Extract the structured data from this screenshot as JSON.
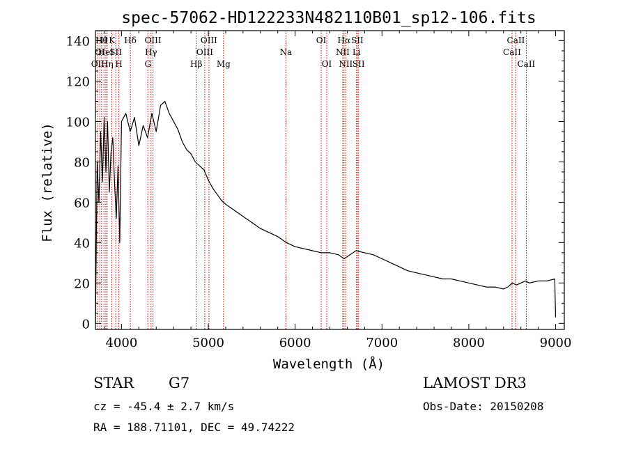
{
  "chart_data": {
    "type": "line",
    "title": "spec-57062-HD122233N482110B01_sp12-106.fits",
    "xlabel": "Wavelength (Å)",
    "ylabel": "Flux (relative)",
    "xlim": [
      3700,
      9100
    ],
    "ylim": [
      -3,
      145
    ],
    "xticks": [
      4000,
      5000,
      6000,
      7000,
      8000,
      9000
    ],
    "xtick_labels": [
      "4000",
      "5000",
      "6000",
      "7000",
      "8000",
      "9000"
    ],
    "yticks": [
      0,
      20,
      40,
      60,
      80,
      100,
      120,
      140
    ],
    "ytick_labels": [
      "0",
      "20",
      "40",
      "60",
      "80",
      "100",
      "120",
      "140"
    ],
    "series": [
      {
        "name": "spectrum",
        "x": [
          3700,
          3720,
          3740,
          3760,
          3780,
          3800,
          3820,
          3840,
          3860,
          3880,
          3900,
          3920,
          3940,
          3960,
          3980,
          4000,
          4050,
          4100,
          4150,
          4200,
          4250,
          4300,
          4350,
          4400,
          4450,
          4500,
          4550,
          4600,
          4650,
          4700,
          4750,
          4800,
          4850,
          4900,
          4950,
          5000,
          5050,
          5100,
          5150,
          5200,
          5300,
          5400,
          5500,
          5600,
          5700,
          5800,
          5900,
          6000,
          6100,
          6200,
          6300,
          6400,
          6500,
          6563,
          6600,
          6700,
          6800,
          6900,
          7000,
          7100,
          7200,
          7300,
          7400,
          7500,
          7600,
          7700,
          7800,
          7900,
          8000,
          8100,
          8200,
          8300,
          8400,
          8450,
          8500,
          8550,
          8600,
          8650,
          8700,
          8800,
          8900,
          8990,
          9000
        ],
        "y": [
          0,
          80,
          60,
          95,
          70,
          102,
          75,
          100,
          65,
          85,
          92,
          70,
          52,
          78,
          40,
          100,
          104,
          95,
          102,
          88,
          98,
          92,
          104,
          95,
          108,
          110,
          104,
          100,
          96,
          90,
          86,
          84,
          80,
          78,
          76,
          71,
          67,
          64,
          61,
          59,
          56,
          53,
          50,
          47,
          45,
          43,
          40,
          38,
          37,
          36,
          35,
          35,
          34,
          32,
          33,
          36,
          35,
          34,
          32,
          30,
          28,
          26,
          25,
          24,
          23,
          22,
          22,
          21,
          20,
          19,
          18,
          18,
          17,
          18,
          20,
          19,
          20,
          21,
          20,
          21,
          21,
          22,
          3
        ]
      }
    ],
    "line_labels": [
      {
        "wavelength": 3727,
        "label": "OII",
        "row": 3
      },
      {
        "wavelength": 3750,
        "label": "OI",
        "row": 2
      },
      {
        "wavelength": 3771,
        "label": "Hθ",
        "row": 1
      },
      {
        "wavelength": 3798,
        "label": "H",
        "row": 1
      },
      {
        "wavelength": 3820,
        "label": "HeI",
        "row": 2
      },
      {
        "wavelength": 3835,
        "label": "Hη",
        "row": 3
      },
      {
        "wavelength": 3889,
        "label": "K",
        "row": 1
      },
      {
        "wavelength": 3934,
        "label": "SII",
        "row": 2
      },
      {
        "wavelength": 3970,
        "label": "H",
        "row": 3
      },
      {
        "wavelength": 4102,
        "label": "Hδ",
        "row": 1
      },
      {
        "wavelength": 4304,
        "label": "G",
        "row": 3
      },
      {
        "wavelength": 4340,
        "label": "Hγ",
        "row": 2
      },
      {
        "wavelength": 4363,
        "label": "OIII",
        "row": 1
      },
      {
        "wavelength": 4861,
        "label": "Hβ",
        "row": 3
      },
      {
        "wavelength": 4959,
        "label": "OIII",
        "row": 2
      },
      {
        "wavelength": 5007,
        "label": "OIII",
        "row": 1
      },
      {
        "wavelength": 5175,
        "label": "Mg",
        "row": 3
      },
      {
        "wavelength": 5894,
        "label": "Na",
        "row": 2
      },
      {
        "wavelength": 6300,
        "label": "OI",
        "row": 1
      },
      {
        "wavelength": 6364,
        "label": "OI",
        "row": 3
      },
      {
        "wavelength": 6548,
        "label": "NII",
        "row": 2
      },
      {
        "wavelength": 6563,
        "label": "Hα",
        "row": 1
      },
      {
        "wavelength": 6583,
        "label": "NII",
        "row": 3
      },
      {
        "wavelength": 6707,
        "label": "Li",
        "row": 2
      },
      {
        "wavelength": 6716,
        "label": "SII",
        "row": 1
      },
      {
        "wavelength": 6731,
        "label": "SII",
        "row": 3
      },
      {
        "wavelength": 8498,
        "label": "CaII",
        "row": 2
      },
      {
        "wavelength": 8542,
        "label": "CaII",
        "row": 1
      },
      {
        "wavelength": 8662,
        "label": "CaII",
        "row": 3
      }
    ]
  },
  "info": {
    "object_class": "STAR",
    "subclass": "G7",
    "survey": "LAMOST DR3",
    "redshift": "cz = -45.4 ± 2.7 km/s",
    "obs_date": "Obs-Date: 20150208",
    "coords": "RA = 188.71101, DEC =  49.74222"
  },
  "colors": {
    "line_marker": "#cc0000",
    "spectrum": "#000000",
    "axes": "#000000"
  }
}
